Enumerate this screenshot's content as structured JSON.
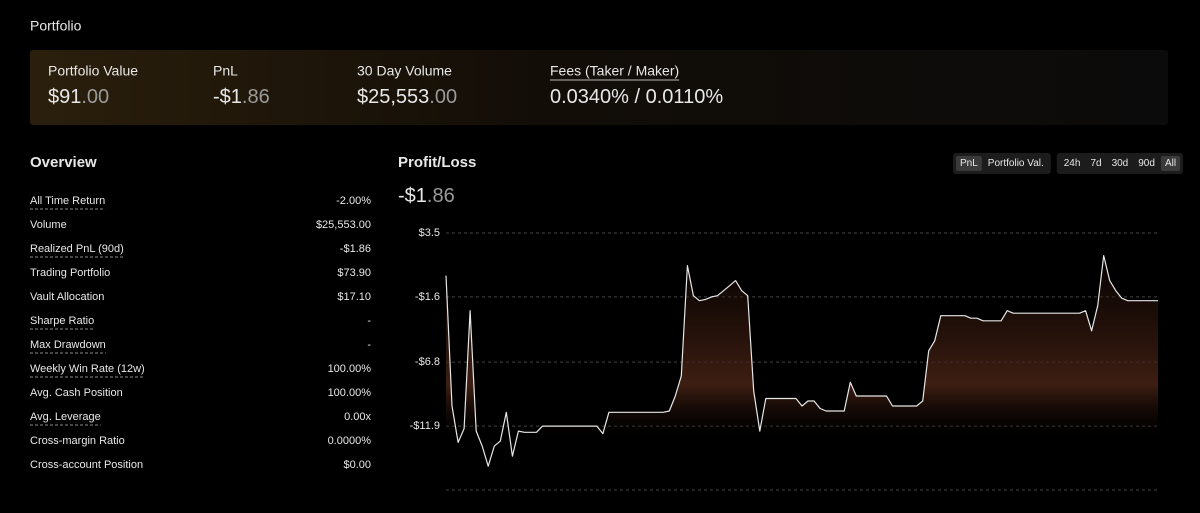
{
  "header": {
    "title": "Portfolio"
  },
  "summary": [
    {
      "label": "Portfolio Value",
      "value_main": "$91",
      "value_decimals": ".00"
    },
    {
      "label": "PnL",
      "value_main": "-$1",
      "value_decimals": ".86"
    },
    {
      "label": "30 Day Volume",
      "value_main": "$25,553",
      "value_decimals": ".00"
    },
    {
      "label": "Fees (Taker / Maker)",
      "value_main": "0.0340% / 0.0110%",
      "underline": true
    }
  ],
  "overview": {
    "title": "Overview",
    "rows": [
      {
        "label": "All Time Return",
        "value": "-2.00%",
        "underline": true,
        "tone": "negative"
      },
      {
        "label": "Volume",
        "value": "$25,553.00"
      },
      {
        "label": "Realized PnL (90d)",
        "value": "-$1.86",
        "underline": true,
        "tone": "negative"
      },
      {
        "label": "Trading Portfolio",
        "value": "$73.90",
        "tone": "positive"
      },
      {
        "label": "Vault Allocation",
        "value": "$17.10"
      },
      {
        "label": "Sharpe Ratio",
        "value": "-",
        "underline": true,
        "tone": "muted"
      },
      {
        "label": "Max Drawdown",
        "value": "-",
        "underline": true,
        "tone": "muted"
      },
      {
        "label": "Weekly Win Rate (12w)",
        "value": "100.00%",
        "underline": true
      },
      {
        "label": "Avg. Cash Position",
        "value": "100.00%"
      },
      {
        "label": "Avg. Leverage",
        "value": "0.00x",
        "underline": true
      },
      {
        "label": "Cross-margin Ratio",
        "value": "0.0000%"
      },
      {
        "label": "Cross-account Position",
        "value": "$0.00"
      }
    ]
  },
  "chart_data": {
    "type": "line",
    "title": "Profit/Loss",
    "headline_main": "-$1",
    "headline_decimals": ".86",
    "modes": [
      "PnL",
      "Portfolio Val."
    ],
    "active_mode": 0,
    "ranges": [
      "24h",
      "7d",
      "30d",
      "90d",
      "All"
    ],
    "active_range": 4,
    "color": "#e6e6e6",
    "grid": true,
    "ylim": [
      -17,
      3.5
    ],
    "yticks": [
      {
        "value": 3.5,
        "label": "$3.5"
      },
      {
        "value": -1.6,
        "label": "-$1.6"
      },
      {
        "value": -6.8,
        "label": "-$6.8"
      },
      {
        "value": -11.9,
        "label": "-$11.9"
      }
    ],
    "values": [
      0.1,
      -10.3,
      -13.2,
      -12.1,
      -2.7,
      -12.3,
      -13.5,
      -15.1,
      -13.5,
      -13.1,
      -10.8,
      -14.3,
      -12.3,
      -12.4,
      -12.4,
      -12.4,
      -11.9,
      -11.9,
      -11.9,
      -11.9,
      -11.9,
      -11.9,
      -11.9,
      -11.9,
      -11.9,
      -11.9,
      -12.5,
      -10.8,
      -10.8,
      -10.8,
      -10.8,
      -10.8,
      -10.8,
      -10.8,
      -10.8,
      -10.8,
      -10.8,
      -10.7,
      -9.5,
      -7.9,
      0.9,
      -1.5,
      -1.9,
      -1.8,
      -1.6,
      -1.5,
      -1.1,
      -0.7,
      -0.3,
      -1.1,
      -1.5,
      -9.1,
      -12.3,
      -9.7,
      -9.7,
      -9.7,
      -9.7,
      -9.7,
      -9.7,
      -10.3,
      -9.9,
      -9.9,
      -10.5,
      -10.7,
      -10.7,
      -10.7,
      -10.7,
      -8.4,
      -9.5,
      -9.5,
      -9.5,
      -9.5,
      -9.5,
      -9.5,
      -10.3,
      -10.3,
      -10.3,
      -10.3,
      -10.3,
      -9.9,
      -5.9,
      -5.1,
      -3.1,
      -3.1,
      -3.1,
      -3.1,
      -3.1,
      -3.3,
      -3.3,
      -3.5,
      -3.5,
      -3.5,
      -3.5,
      -2.7,
      -2.9,
      -2.9,
      -2.9,
      -2.9,
      -2.9,
      -2.9,
      -2.9,
      -2.9,
      -2.9,
      -2.9,
      -2.9,
      -2.9,
      -2.7,
      -4.3,
      -2.3,
      1.7,
      -0.3,
      -1.1,
      -1.7,
      -1.9,
      -1.9,
      -1.9,
      -1.9,
      -1.9,
      -1.9
    ]
  }
}
